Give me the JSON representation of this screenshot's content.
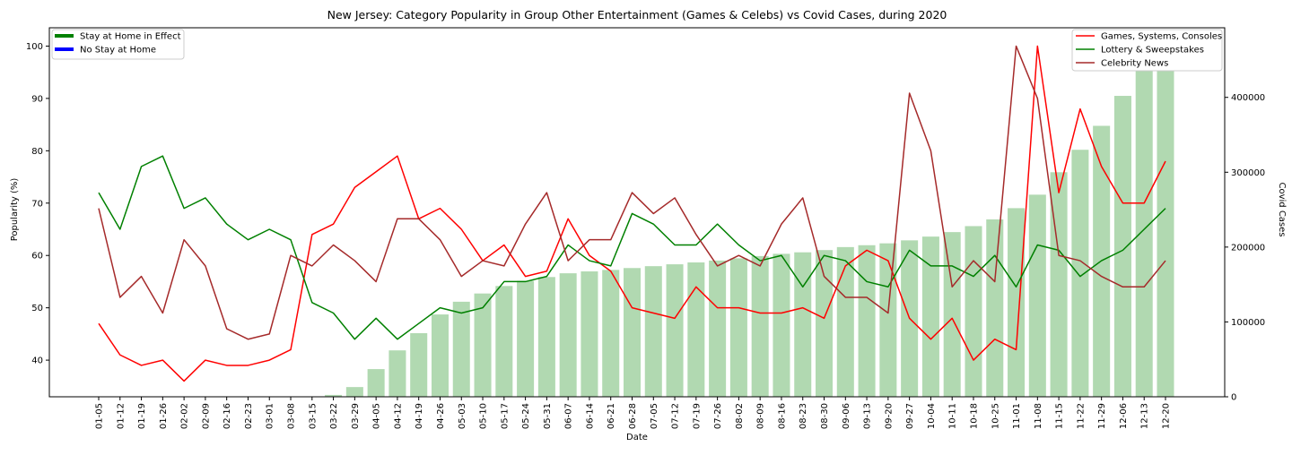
{
  "chart_data": {
    "type": "line",
    "title": "New Jersey: Category Popularity in Group Other Entertainment (Games & Celebs) vs Covid Cases, during 2020",
    "xlabel": "Date",
    "ylabel": "Popularity (%)",
    "y2label": "Covid Cases",
    "ylim": [
      33,
      103.5
    ],
    "y2lim": [
      0,
      493000
    ],
    "yticks": [
      40,
      50,
      60,
      70,
      80,
      90,
      100
    ],
    "y2ticks": [
      0,
      100000,
      200000,
      300000,
      400000
    ],
    "categories": [
      "01-05",
      "01-12",
      "01-19",
      "01-26",
      "02-02",
      "02-09",
      "02-16",
      "02-23",
      "03-01",
      "03-08",
      "03-15",
      "03-22",
      "03-29",
      "04-05",
      "04-12",
      "04-19",
      "04-26",
      "05-03",
      "05-10",
      "05-17",
      "05-24",
      "05-31",
      "06-07",
      "06-14",
      "06-21",
      "06-28",
      "07-05",
      "07-12",
      "07-19",
      "07-26",
      "08-02",
      "08-09",
      "08-16",
      "08-23",
      "08-30",
      "09-06",
      "09-13",
      "09-20",
      "09-27",
      "10-04",
      "10-11",
      "10-18",
      "10-25",
      "11-01",
      "11-08",
      "11-15",
      "11-22",
      "11-29",
      "12-06",
      "12-13",
      "12-20"
    ],
    "series": [
      {
        "name": "Games, Systems, Consoles",
        "color": "#ff0000",
        "values": [
          47,
          41,
          39,
          40,
          36,
          40,
          39,
          39,
          40,
          42,
          64,
          66,
          73,
          76,
          79,
          67,
          69,
          65,
          59,
          62,
          56,
          57,
          67,
          60,
          57,
          50,
          49,
          48,
          54,
          50,
          50,
          49,
          49,
          50,
          48,
          58,
          61,
          59,
          48,
          44,
          48,
          40,
          44,
          42,
          100,
          72,
          88,
          77,
          70,
          70,
          78
        ]
      },
      {
        "name": "Lottery & Sweepstakes",
        "color": "#008000",
        "values": [
          72,
          65,
          77,
          79,
          69,
          71,
          66,
          63,
          65,
          63,
          51,
          49,
          44,
          48,
          44,
          47,
          50,
          49,
          50,
          55,
          55,
          56,
          62,
          59,
          58,
          68,
          66,
          62,
          62,
          66,
          62,
          59,
          60,
          54,
          60,
          59,
          55,
          54,
          61,
          58,
          58,
          56,
          60,
          54,
          62,
          61,
          56,
          59,
          61,
          65,
          69
        ]
      },
      {
        "name": "Celebrity News",
        "color": "#a52a2a",
        "values": [
          69,
          52,
          56,
          49,
          63,
          58,
          46,
          44,
          45,
          60,
          58,
          62,
          59,
          55,
          67,
          67,
          63,
          56,
          59,
          58,
          66,
          72,
          59,
          63,
          63,
          72,
          68,
          71,
          64,
          58,
          60,
          58,
          66,
          71,
          56,
          52,
          52,
          49,
          91,
          80,
          54,
          59,
          55,
          100,
          90,
          60,
          59,
          56,
          54,
          54,
          59
        ]
      }
    ],
    "bars": {
      "name": "Covid Cases",
      "color": "#b1d9b1",
      "values": [
        0,
        0,
        0,
        0,
        0,
        0,
        0,
        0,
        0,
        0,
        0,
        2500,
        13000,
        37000,
        62000,
        85000,
        110000,
        127000,
        138000,
        148000,
        155000,
        160000,
        165000,
        167500,
        169500,
        172000,
        174500,
        177000,
        179500,
        182000,
        185000,
        188000,
        191000,
        193000,
        196000,
        200000,
        202500,
        205000,
        209000,
        214000,
        220000,
        228000,
        237000,
        252000,
        270000,
        300000,
        330000,
        362000,
        402000,
        440000,
        475000
      ]
    },
    "legends": {
      "left": [
        {
          "label": "Stay at Home in Effect",
          "color": "#008000"
        },
        {
          "label": "No Stay at Home",
          "color": "#0000ff"
        }
      ],
      "right_position": "top-right",
      "left_position": "top-left"
    },
    "grid": false
  }
}
